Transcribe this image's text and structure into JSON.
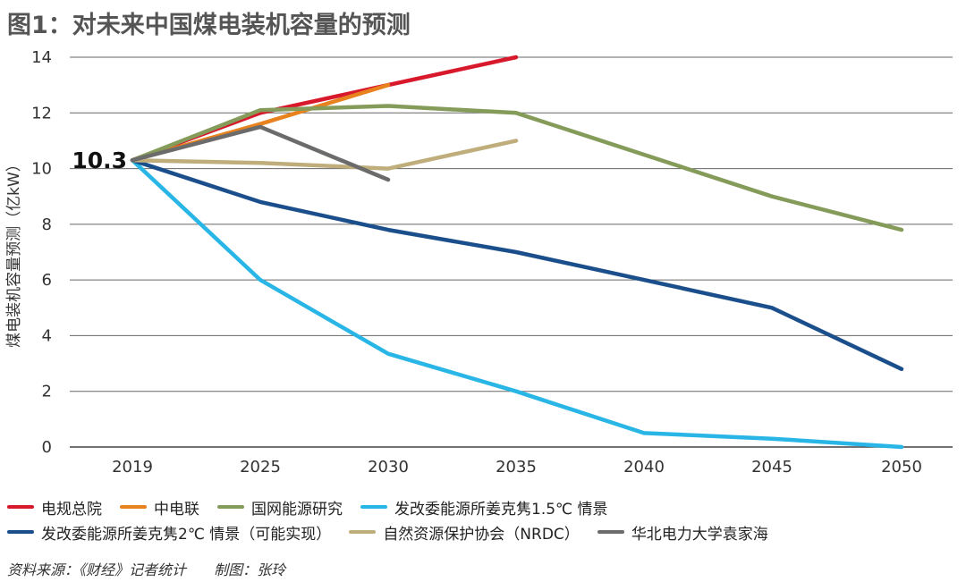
{
  "title": "图1：对未来中国煤电装机容量的预测",
  "chart_data": {
    "type": "line",
    "x": [
      "2019",
      "2025",
      "2030",
      "2035",
      "2040",
      "2045",
      "2050"
    ],
    "ylabel": "煤电装机容量预测（亿kW）",
    "ylim": [
      0,
      14
    ],
    "yticks": [
      0,
      2,
      4,
      6,
      8,
      10,
      12,
      14
    ],
    "grid": true,
    "annotation": "10.3",
    "series": [
      {
        "name": "电规总院",
        "color": "#d7192b",
        "values": [
          10.3,
          12.0,
          13.0,
          14.0,
          null,
          null,
          null
        ]
      },
      {
        "name": "中电联",
        "color": "#e8821e",
        "values": [
          10.3,
          11.6,
          13.0,
          null,
          null,
          null,
          null
        ]
      },
      {
        "name": "国网能源研究",
        "color": "#859b5a",
        "values": [
          10.3,
          12.1,
          12.25,
          12.0,
          10.5,
          9.0,
          7.8
        ]
      },
      {
        "name": "发改委能源所姜克隽1.5℃ 情景",
        "color": "#29b6e6",
        "values": [
          10.3,
          6.0,
          3.35,
          2.0,
          0.5,
          0.3,
          0.0
        ]
      },
      {
        "name": "发改委能源所姜克隽2℃ 情景（可能实现）",
        "color": "#1b4f8c",
        "values": [
          10.3,
          8.8,
          7.8,
          7.0,
          6.0,
          5.0,
          2.8
        ]
      },
      {
        "name": "自然资源保护协会（NRDC）",
        "color": "#bfae7b",
        "values": [
          10.3,
          10.2,
          10.0,
          11.0,
          null,
          null,
          null
        ]
      },
      {
        "name": "华北电力大学袁家海",
        "color": "#6b6b6b",
        "values": [
          10.3,
          11.5,
          9.6,
          null,
          null,
          null,
          null
        ]
      }
    ]
  },
  "legend_rows": [
    [
      0,
      1,
      2,
      3
    ],
    [
      4,
      5,
      6
    ]
  ],
  "source": {
    "left": "资料来源：《财经》记者统计",
    "right": "制图：张玲"
  }
}
